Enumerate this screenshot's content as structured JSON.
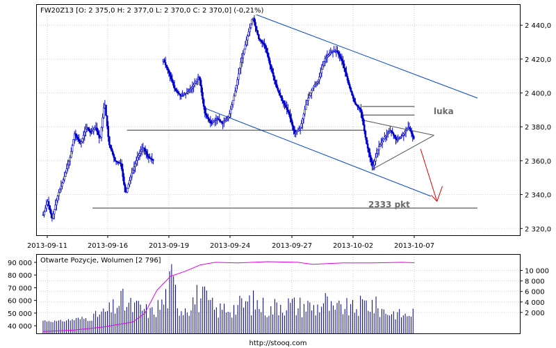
{
  "source_link": "http://stooq.com",
  "chart_data": [
    {
      "type": "candlestick",
      "legend": "FW20Z13 [O: 2 375,0  H: 2 377,0  L: 2 370,0  C: 2 370,0] (-0,21%)",
      "ylim": [
        2316,
        2452
      ],
      "y_ticks": [
        2320,
        2340,
        2360,
        2380,
        2400,
        2420,
        2440
      ],
      "y_tick_labels": [
        "2 320,0",
        "2 340,0",
        "2 360,0",
        "2 380,0",
        "2 400,0",
        "2 420,0",
        "2 440,0"
      ],
      "x_tick_labels": [
        "2013-09-11",
        "2013-09-16",
        "2013-09-19",
        "2013-09-24",
        "2013-09-27",
        "2013-10-02",
        "2013-10-07"
      ],
      "candle_color": "#0000cc",
      "close_path": [
        {
          "x": 0.0,
          "y": 2328
        },
        {
          "x": 0.3,
          "y": 2336
        },
        {
          "x": 0.6,
          "y": 2326
        },
        {
          "x": 1.0,
          "y": 2340
        },
        {
          "x": 1.4,
          "y": 2350
        },
        {
          "x": 1.8,
          "y": 2362
        },
        {
          "x": 2.1,
          "y": 2376
        },
        {
          "x": 2.5,
          "y": 2370
        },
        {
          "x": 2.9,
          "y": 2380
        },
        {
          "x": 3.2,
          "y": 2376
        },
        {
          "x": 3.5,
          "y": 2380
        },
        {
          "x": 3.8,
          "y": 2372
        },
        {
          "x": 4.1,
          "y": 2395
        },
        {
          "x": 4.4,
          "y": 2370
        },
        {
          "x": 4.8,
          "y": 2360
        },
        {
          "x": 5.2,
          "y": 2358
        },
        {
          "x": 5.5,
          "y": 2340
        },
        {
          "x": 5.9,
          "y": 2352
        },
        {
          "x": 6.3,
          "y": 2362
        },
        {
          "x": 6.7,
          "y": 2368
        },
        {
          "x": 7.0,
          "y": 2362
        },
        {
          "x": 7.4,
          "y": 2360
        },
        {
          "x": 8.0,
          "y": 2420
        },
        {
          "x": 8.4,
          "y": 2412
        },
        {
          "x": 8.8,
          "y": 2402
        },
        {
          "x": 9.2,
          "y": 2398
        },
        {
          "x": 9.6,
          "y": 2400
        },
        {
          "x": 10.0,
          "y": 2404
        },
        {
          "x": 10.4,
          "y": 2410
        },
        {
          "x": 10.8,
          "y": 2388
        },
        {
          "x": 11.2,
          "y": 2382
        },
        {
          "x": 11.6,
          "y": 2385
        },
        {
          "x": 12.0,
          "y": 2382
        },
        {
          "x": 12.4,
          "y": 2386
        },
        {
          "x": 12.8,
          "y": 2400
        },
        {
          "x": 13.2,
          "y": 2418
        },
        {
          "x": 13.6,
          "y": 2432
        },
        {
          "x": 14.0,
          "y": 2445
        },
        {
          "x": 14.4,
          "y": 2432
        },
        {
          "x": 14.8,
          "y": 2428
        },
        {
          "x": 15.2,
          "y": 2415
        },
        {
          "x": 15.6,
          "y": 2403
        },
        {
          "x": 16.0,
          "y": 2395
        },
        {
          "x": 16.4,
          "y": 2388
        },
        {
          "x": 16.8,
          "y": 2376
        },
        {
          "x": 17.2,
          "y": 2380
        },
        {
          "x": 17.6,
          "y": 2395
        },
        {
          "x": 18.0,
          "y": 2403
        },
        {
          "x": 18.4,
          "y": 2408
        },
        {
          "x": 18.8,
          "y": 2420
        },
        {
          "x": 19.2,
          "y": 2424
        },
        {
          "x": 19.6,
          "y": 2425
        },
        {
          "x": 20.0,
          "y": 2418
        },
        {
          "x": 20.4,
          "y": 2405
        },
        {
          "x": 20.8,
          "y": 2394
        },
        {
          "x": 21.2,
          "y": 2390
        },
        {
          "x": 21.6,
          "y": 2370
        },
        {
          "x": 22.0,
          "y": 2356
        },
        {
          "x": 22.4,
          "y": 2368
        },
        {
          "x": 22.8,
          "y": 2374
        },
        {
          "x": 23.2,
          "y": 2378
        },
        {
          "x": 23.6,
          "y": 2372
        },
        {
          "x": 24.0,
          "y": 2375
        },
        {
          "x": 24.4,
          "y": 2380
        },
        {
          "x": 24.8,
          "y": 2372
        }
      ],
      "annotations": [
        {
          "text": "luka"
        },
        {
          "text": "2333 pkt"
        }
      ],
      "lines": [
        {
          "kind": "channel-upper",
          "from": {
            "x": 14.0,
            "y": 2447
          },
          "to": {
            "x": 29.0,
            "y": 2397
          },
          "color": "#0044cc"
        },
        {
          "kind": "channel-lower",
          "from": {
            "x": 10.8,
            "y": 2391
          },
          "to": {
            "x": 25.9,
            "y": 2339
          },
          "color": "#0044cc"
        },
        {
          "kind": "support",
          "from": {
            "x": 5.6,
            "y": 2378
          },
          "to": {
            "x": 21.4,
            "y": 2378
          },
          "color": "#333333"
        },
        {
          "kind": "support-2333",
          "from": {
            "x": 3.3,
            "y": 2332
          },
          "to": {
            "x": 29.0,
            "y": 2332
          },
          "color": "#333333"
        },
        {
          "kind": "gap-top",
          "from": {
            "x": 21.3,
            "y": 2392
          },
          "to": {
            "x": 24.8,
            "y": 2392
          },
          "color": "#333333"
        },
        {
          "kind": "gap-bottom",
          "from": {
            "x": 21.3,
            "y": 2387
          },
          "to": {
            "x": 24.8,
            "y": 2387
          },
          "color": "#333333"
        },
        {
          "kind": "triangle-top",
          "from": {
            "x": 21.3,
            "y": 2384
          },
          "to": {
            "x": 26.1,
            "y": 2375
          },
          "color": "#555555"
        },
        {
          "kind": "triangle-bottom",
          "from": {
            "x": 22.0,
            "y": 2355
          },
          "to": {
            "x": 26.1,
            "y": 2375
          },
          "color": "#555555"
        },
        {
          "kind": "forecast-arrow",
          "from": {
            "x": 25.2,
            "y": 2367
          },
          "to": {
            "x": 26.3,
            "y": 2336
          },
          "color": "#e00000"
        }
      ]
    },
    {
      "type": "bar+line",
      "legend": "Otwarte Pozycje, Wolumen [2 796]",
      "left_axis": {
        "name": "Otwarte Pozycje",
        "range": [
          34000,
          96000
        ],
        "ticks": [
          40000,
          50000,
          60000,
          70000,
          80000,
          90000
        ],
        "tick_labels": [
          "40 000",
          "50 000",
          "60 000",
          "70 000",
          "80 000",
          "90 000"
        ]
      },
      "right_axis": {
        "name": "Wolumen",
        "range": [
          -2000,
          13000
        ],
        "ticks": [
          2000,
          4000,
          6000,
          8000,
          10000
        ],
        "tick_labels": [
          "2 000",
          "4 000",
          "6 000",
          "8 000",
          "10 000"
        ]
      },
      "open_interest_color": "#e000e0",
      "volume_color": "#000080",
      "open_interest": [
        {
          "x": 0.0,
          "y": 35500
        },
        {
          "x": 2.0,
          "y": 36500
        },
        {
          "x": 4.0,
          "y": 39000
        },
        {
          "x": 6.0,
          "y": 43000
        },
        {
          "x": 6.8,
          "y": 50000
        },
        {
          "x": 7.6,
          "y": 68000
        },
        {
          "x": 8.5,
          "y": 79000
        },
        {
          "x": 9.5,
          "y": 83000
        },
        {
          "x": 10.5,
          "y": 88000
        },
        {
          "x": 11.5,
          "y": 90000
        },
        {
          "x": 13.0,
          "y": 89500
        },
        {
          "x": 15.0,
          "y": 90500
        },
        {
          "x": 17.0,
          "y": 90000
        },
        {
          "x": 18.0,
          "y": 88500
        },
        {
          "x": 20.0,
          "y": 89500
        },
        {
          "x": 22.0,
          "y": 89500
        },
        {
          "x": 24.0,
          "y": 90000
        },
        {
          "x": 24.8,
          "y": 89700
        }
      ],
      "volume": [
        {
          "x": 0.0,
          "y": 600
        },
        {
          "x": 1.0,
          "y": 400
        },
        {
          "x": 2.0,
          "y": 900
        },
        {
          "x": 3.0,
          "y": 1200
        },
        {
          "x": 4.0,
          "y": 2500
        },
        {
          "x": 4.6,
          "y": 3500
        },
        {
          "x": 5.2,
          "y": 5600
        },
        {
          "x": 5.8,
          "y": 4200
        },
        {
          "x": 6.5,
          "y": 3800
        },
        {
          "x": 7.2,
          "y": 2600
        },
        {
          "x": 8.0,
          "y": 5000
        },
        {
          "x": 8.6,
          "y": 10000
        },
        {
          "x": 9.2,
          "y": 3600
        },
        {
          "x": 9.8,
          "y": 5200
        },
        {
          "x": 10.4,
          "y": 6700
        },
        {
          "x": 11.0,
          "y": 5300
        },
        {
          "x": 11.6,
          "y": 2900
        },
        {
          "x": 12.2,
          "y": 4000
        },
        {
          "x": 12.8,
          "y": 3800
        },
        {
          "x": 13.4,
          "y": 4800
        },
        {
          "x": 14.0,
          "y": 5200
        },
        {
          "x": 14.6,
          "y": 4400
        },
        {
          "x": 15.2,
          "y": 3200
        },
        {
          "x": 15.8,
          "y": 5300
        },
        {
          "x": 16.4,
          "y": 4700
        },
        {
          "x": 17.0,
          "y": 4200
        },
        {
          "x": 17.6,
          "y": 4500
        },
        {
          "x": 18.2,
          "y": 3700
        },
        {
          "x": 18.8,
          "y": 5600
        },
        {
          "x": 19.4,
          "y": 2900
        },
        {
          "x": 20.0,
          "y": 4200
        },
        {
          "x": 20.6,
          "y": 3400
        },
        {
          "x": 21.2,
          "y": 4300
        },
        {
          "x": 21.8,
          "y": 5300
        },
        {
          "x": 22.4,
          "y": 3600
        },
        {
          "x": 23.0,
          "y": 2800
        },
        {
          "x": 23.6,
          "y": 2400
        },
        {
          "x": 24.2,
          "y": 1900
        },
        {
          "x": 24.8,
          "y": 2796
        }
      ]
    }
  ]
}
